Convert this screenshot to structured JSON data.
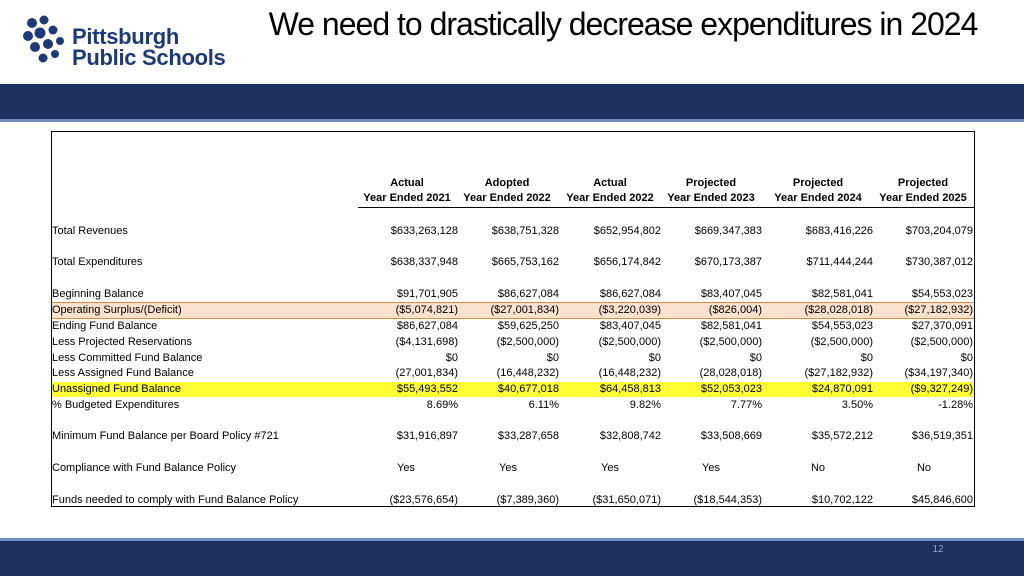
{
  "logo": {
    "line1": "Pittsburgh",
    "line2": "Public Schools"
  },
  "slide": {
    "title": "We need to drastically decrease expenditures in 2024",
    "page_number": "12"
  },
  "table": {
    "columns": [
      {
        "line1": "Actual",
        "line2": "Year Ended 2021"
      },
      {
        "line1": "Adopted",
        "line2": "Year Ended 2022"
      },
      {
        "line1": "Actual",
        "line2": "Year Ended 2022"
      },
      {
        "line1": "Projected",
        "line2": "Year Ended 2023"
      },
      {
        "line1": "Projected",
        "line2": "Year Ended 2024"
      },
      {
        "line1": "Projected",
        "line2": "Year Ended 2025"
      }
    ],
    "rows": [
      {
        "label": "Total Revenues",
        "values": [
          "$633,263,128",
          "$638,751,328",
          "$652,954,802",
          "$669,347,383",
          "$683,416,226",
          "$703,204,079"
        ]
      },
      {
        "label": "Total Expenditures",
        "values": [
          "$638,337,948",
          "$665,753,162",
          "$656,174,842",
          "$670,173,387",
          "$711,444,244",
          "$730,387,012"
        ]
      },
      {
        "label": "Beginning Balance",
        "values": [
          "$91,701,905",
          "$86,627,084",
          "$86,627,084",
          "$83,407,045",
          "$82,581,041",
          "$54,553,023"
        ]
      },
      {
        "label": "Operating Surplus/(Deficit)",
        "values": [
          "($5,074,821)",
          "($27,001,834)",
          "($3,220,039)",
          "($826,004)",
          "($28,028,018)",
          "($27,182,932)"
        ]
      },
      {
        "label": "Ending Fund Balance",
        "values": [
          "$86,627,084",
          "$59,625,250",
          "$83,407,045",
          "$82,581,041",
          "$54,553,023",
          "$27,370,091"
        ]
      },
      {
        "label": "Less Projected Reservations",
        "values": [
          "($4,131,698)",
          "($2,500,000)",
          "($2,500,000)",
          "($2,500,000)",
          "($2,500,000)",
          "($2,500,000)"
        ]
      },
      {
        "label": "Less Committed Fund Balance",
        "values": [
          "$0",
          "$0",
          "$0",
          "$0",
          "$0",
          "$0"
        ]
      },
      {
        "label": "Less Assigned Fund Balance",
        "values": [
          "(27,001,834)",
          "(16,448,232)",
          "(16,448,232)",
          "(28,028,018)",
          "($27,182,932)",
          "($34,197,340)"
        ]
      },
      {
        "label": "Unassigned Fund Balance",
        "values": [
          "$55,493,552",
          "$40,677,018",
          "$64,458,813",
          "$52,053,023",
          "$24,870,091",
          "($9,327,249)"
        ]
      },
      {
        "label": "% Budgeted Expenditures",
        "values": [
          "8.69%",
          "6.11%",
          "9.82%",
          "7.77%",
          "3.50%",
          "-1.28%"
        ]
      },
      {
        "label": "Minimum Fund Balance per Board Policy #721",
        "values": [
          "$31,916,897",
          "$33,287,658",
          "$32,808,742",
          "$33,508,669",
          "$35,572,212",
          "$36,519,351"
        ]
      },
      {
        "label": "Compliance with Fund Balance Policy",
        "values": [
          "Yes",
          "Yes",
          "Yes",
          "Yes",
          "No",
          "No"
        ]
      },
      {
        "label": "Funds needed to comply with Fund Balance Policy",
        "values": [
          "($23,576,654)",
          "($7,389,360)",
          "($31,650,071)",
          "($18,544,353)",
          "$10,702,122",
          "$45,846,600"
        ]
      }
    ]
  },
  "colors": {
    "band": "#1d2f5e",
    "band_line": "#6d8fc4",
    "logo": "#1d3a78",
    "highlight_orange": "#fbe2cf",
    "highlight_yellow": "#ffff33"
  }
}
